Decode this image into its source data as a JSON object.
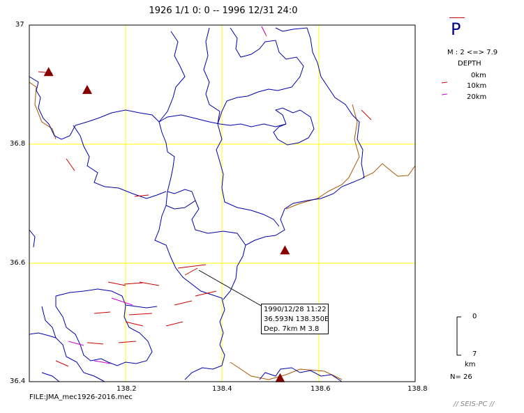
{
  "header": {
    "title": "1926 1/1 0: 0 -- 1996 12/31 24:0",
    "mechanism_label": "P"
  },
  "legend": {
    "magnitude_range": "M : 2 <=> 7.9",
    "depth_title": "DEPTH",
    "depth_items": [
      {
        "label": "0km",
        "color": "#ffffff"
      },
      {
        "label": "10km",
        "color": "#cc0000"
      },
      {
        "label": "20km",
        "color": "#cc00cc"
      }
    ]
  },
  "map": {
    "lat_labels": [
      "37",
      "36.8",
      "36.6",
      "36.4"
    ],
    "lon_labels": [
      "138.2",
      "138.4",
      "138.6",
      "138.8"
    ],
    "lat_range": [
      36.4,
      37.0
    ],
    "lon_range": [
      138.0,
      138.8
    ],
    "grid_color": "#ffff00",
    "boundary_color": "#0000aa",
    "coast_color": "#aa5500",
    "volcano_color": "#880000",
    "volcanoes": [
      {
        "lat": 36.92,
        "lon": 138.04
      },
      {
        "lat": 36.89,
        "lon": 138.12
      },
      {
        "lat": 36.62,
        "lon": 138.53
      },
      {
        "lat": 36.405,
        "lon": 138.52
      }
    ]
  },
  "event_info": {
    "datetime": "1990/12/28 11:22",
    "location": "36.593N   138.350E",
    "depth_mag": "Dep. 7km    M 3.8"
  },
  "depth_scale": {
    "top_label": "0",
    "bottom_label": "7",
    "unit": "km",
    "count": "N= 26"
  },
  "footer": {
    "file": "FILE:JMA_mec1926-2016.mec",
    "brand": "// SEIS-PC //"
  }
}
